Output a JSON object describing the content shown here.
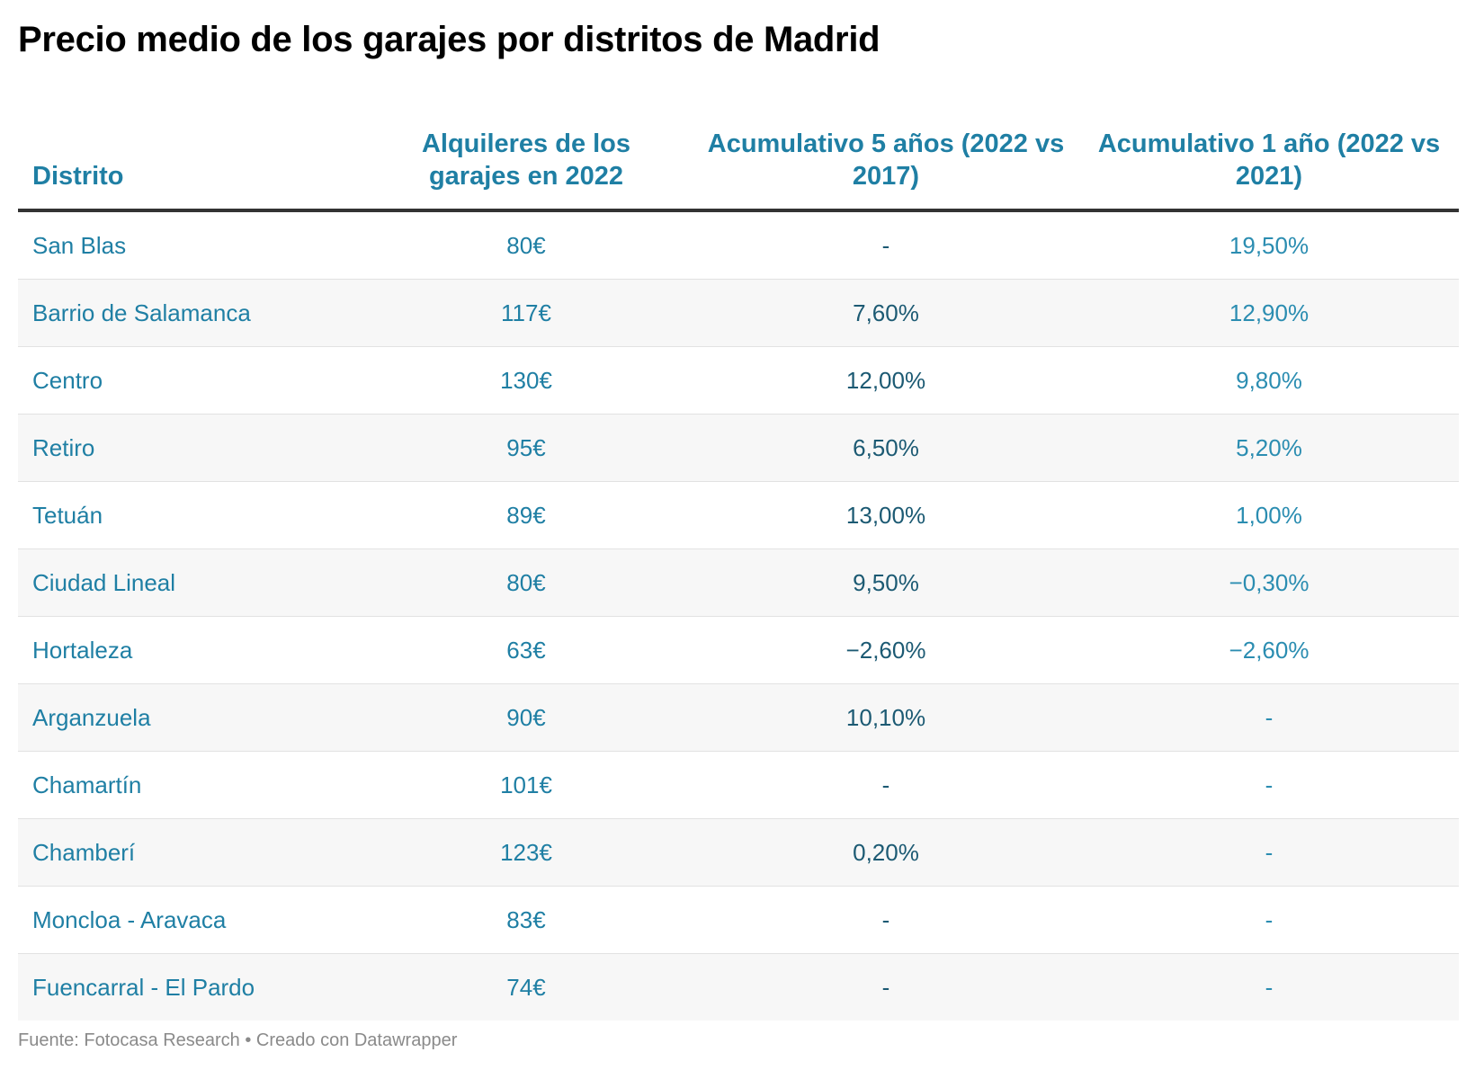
{
  "title": "Precio medio de los garajes por distritos de Madrid",
  "source": "Fuente: Fotocasa Research • Creado con Datawrapper",
  "colors": {
    "accent": "#1f7fa4",
    "dark_teal": "#1c5a73",
    "title": "#000000",
    "muted": "#8a8a8a"
  },
  "chart_data": {
    "type": "table",
    "title": "Precio medio de los garajes por distritos de Madrid",
    "columns": [
      "Distrito",
      "Alquileres de los garajes en 2022",
      "Acumulativo 5 años (2022 vs 2017)",
      "Acumulativo 1 año (2022 vs 2021)"
    ],
    "rows": [
      [
        "San Blas",
        "80€",
        "-",
        "19,50%"
      ],
      [
        "Barrio de Salamanca",
        "117€",
        "7,60%",
        "12,90%"
      ],
      [
        "Centro",
        "130€",
        "12,00%",
        "9,80%"
      ],
      [
        "Retiro",
        "95€",
        "6,50%",
        "5,20%"
      ],
      [
        "Tetuán",
        "89€",
        "13,00%",
        "1,00%"
      ],
      [
        "Ciudad Lineal",
        "80€",
        "9,50%",
        "−0,30%"
      ],
      [
        "Hortaleza",
        "63€",
        "−2,60%",
        "−2,60%"
      ],
      [
        "Arganzuela",
        "90€",
        "10,10%",
        "-"
      ],
      [
        "Chamartín",
        "101€",
        "-",
        "-"
      ],
      [
        "Chamberí",
        "123€",
        "0,20%",
        "-"
      ],
      [
        "Moncloa - Aravaca",
        "83€",
        "-",
        "-"
      ],
      [
        "Fuencarral - El Pardo",
        "74€",
        "-",
        "-"
      ]
    ]
  }
}
